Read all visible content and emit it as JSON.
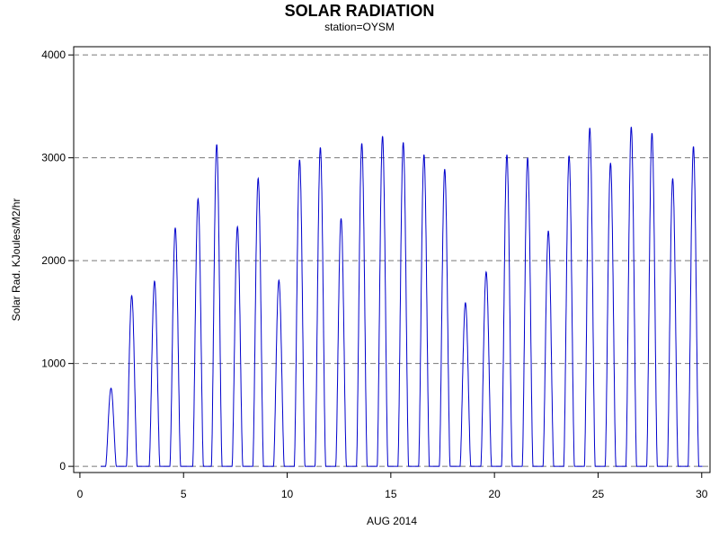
{
  "title": "SOLAR RADIATION",
  "subtitle": "station=OYSM",
  "chart_data": {
    "type": "line",
    "title": "SOLAR RADIATION",
    "subtitle": "station=OYSM",
    "xlabel": "AUG 2014",
    "ylabel": "Solar Rad. KJoules/M2/hr",
    "xlim": [
      -0.3,
      30.4
    ],
    "ylim": [
      -60,
      4080
    ],
    "x_ticks": [
      0,
      5,
      10,
      15,
      20,
      25,
      30
    ],
    "y_ticks": [
      0,
      1000,
      2000,
      3000,
      4000
    ],
    "grid": "horizontal dashed",
    "line_color": "#0000cc",
    "series": [
      {
        "daily_peaks": [
          {
            "day": 1.5,
            "peak": 760
          },
          {
            "day": 2.5,
            "peak": 1660
          },
          {
            "day": 3.6,
            "peak": 1800
          },
          {
            "day": 4.6,
            "peak": 2320
          },
          {
            "day": 5.7,
            "peak": 2600
          },
          {
            "day": 6.6,
            "peak": 3130
          },
          {
            "day": 7.6,
            "peak": 2330
          },
          {
            "day": 8.6,
            "peak": 2800
          },
          {
            "day": 9.6,
            "peak": 1810
          },
          {
            "day": 10.6,
            "peak": 2980
          },
          {
            "day": 11.6,
            "peak": 3100
          },
          {
            "day": 12.6,
            "peak": 2410
          },
          {
            "day": 13.6,
            "peak": 3140
          },
          {
            "day": 14.6,
            "peak": 3210
          },
          {
            "day": 15.6,
            "peak": 3150
          },
          {
            "day": 16.6,
            "peak": 3030
          },
          {
            "day": 17.6,
            "peak": 2890
          },
          {
            "day": 18.6,
            "peak": 1590
          },
          {
            "day": 19.6,
            "peak": 1890
          },
          {
            "day": 20.6,
            "peak": 3030
          },
          {
            "day": 21.6,
            "peak": 3000
          },
          {
            "day": 22.6,
            "peak": 2290
          },
          {
            "day": 23.6,
            "peak": 3020
          },
          {
            "day": 24.6,
            "peak": 3290
          },
          {
            "day": 25.6,
            "peak": 2950
          },
          {
            "day": 26.6,
            "peak": 3300
          },
          {
            "day": 27.6,
            "peak": 3240
          },
          {
            "day": 28.6,
            "peak": 2800
          },
          {
            "day": 29.6,
            "peak": 3110
          }
        ]
      }
    ]
  }
}
